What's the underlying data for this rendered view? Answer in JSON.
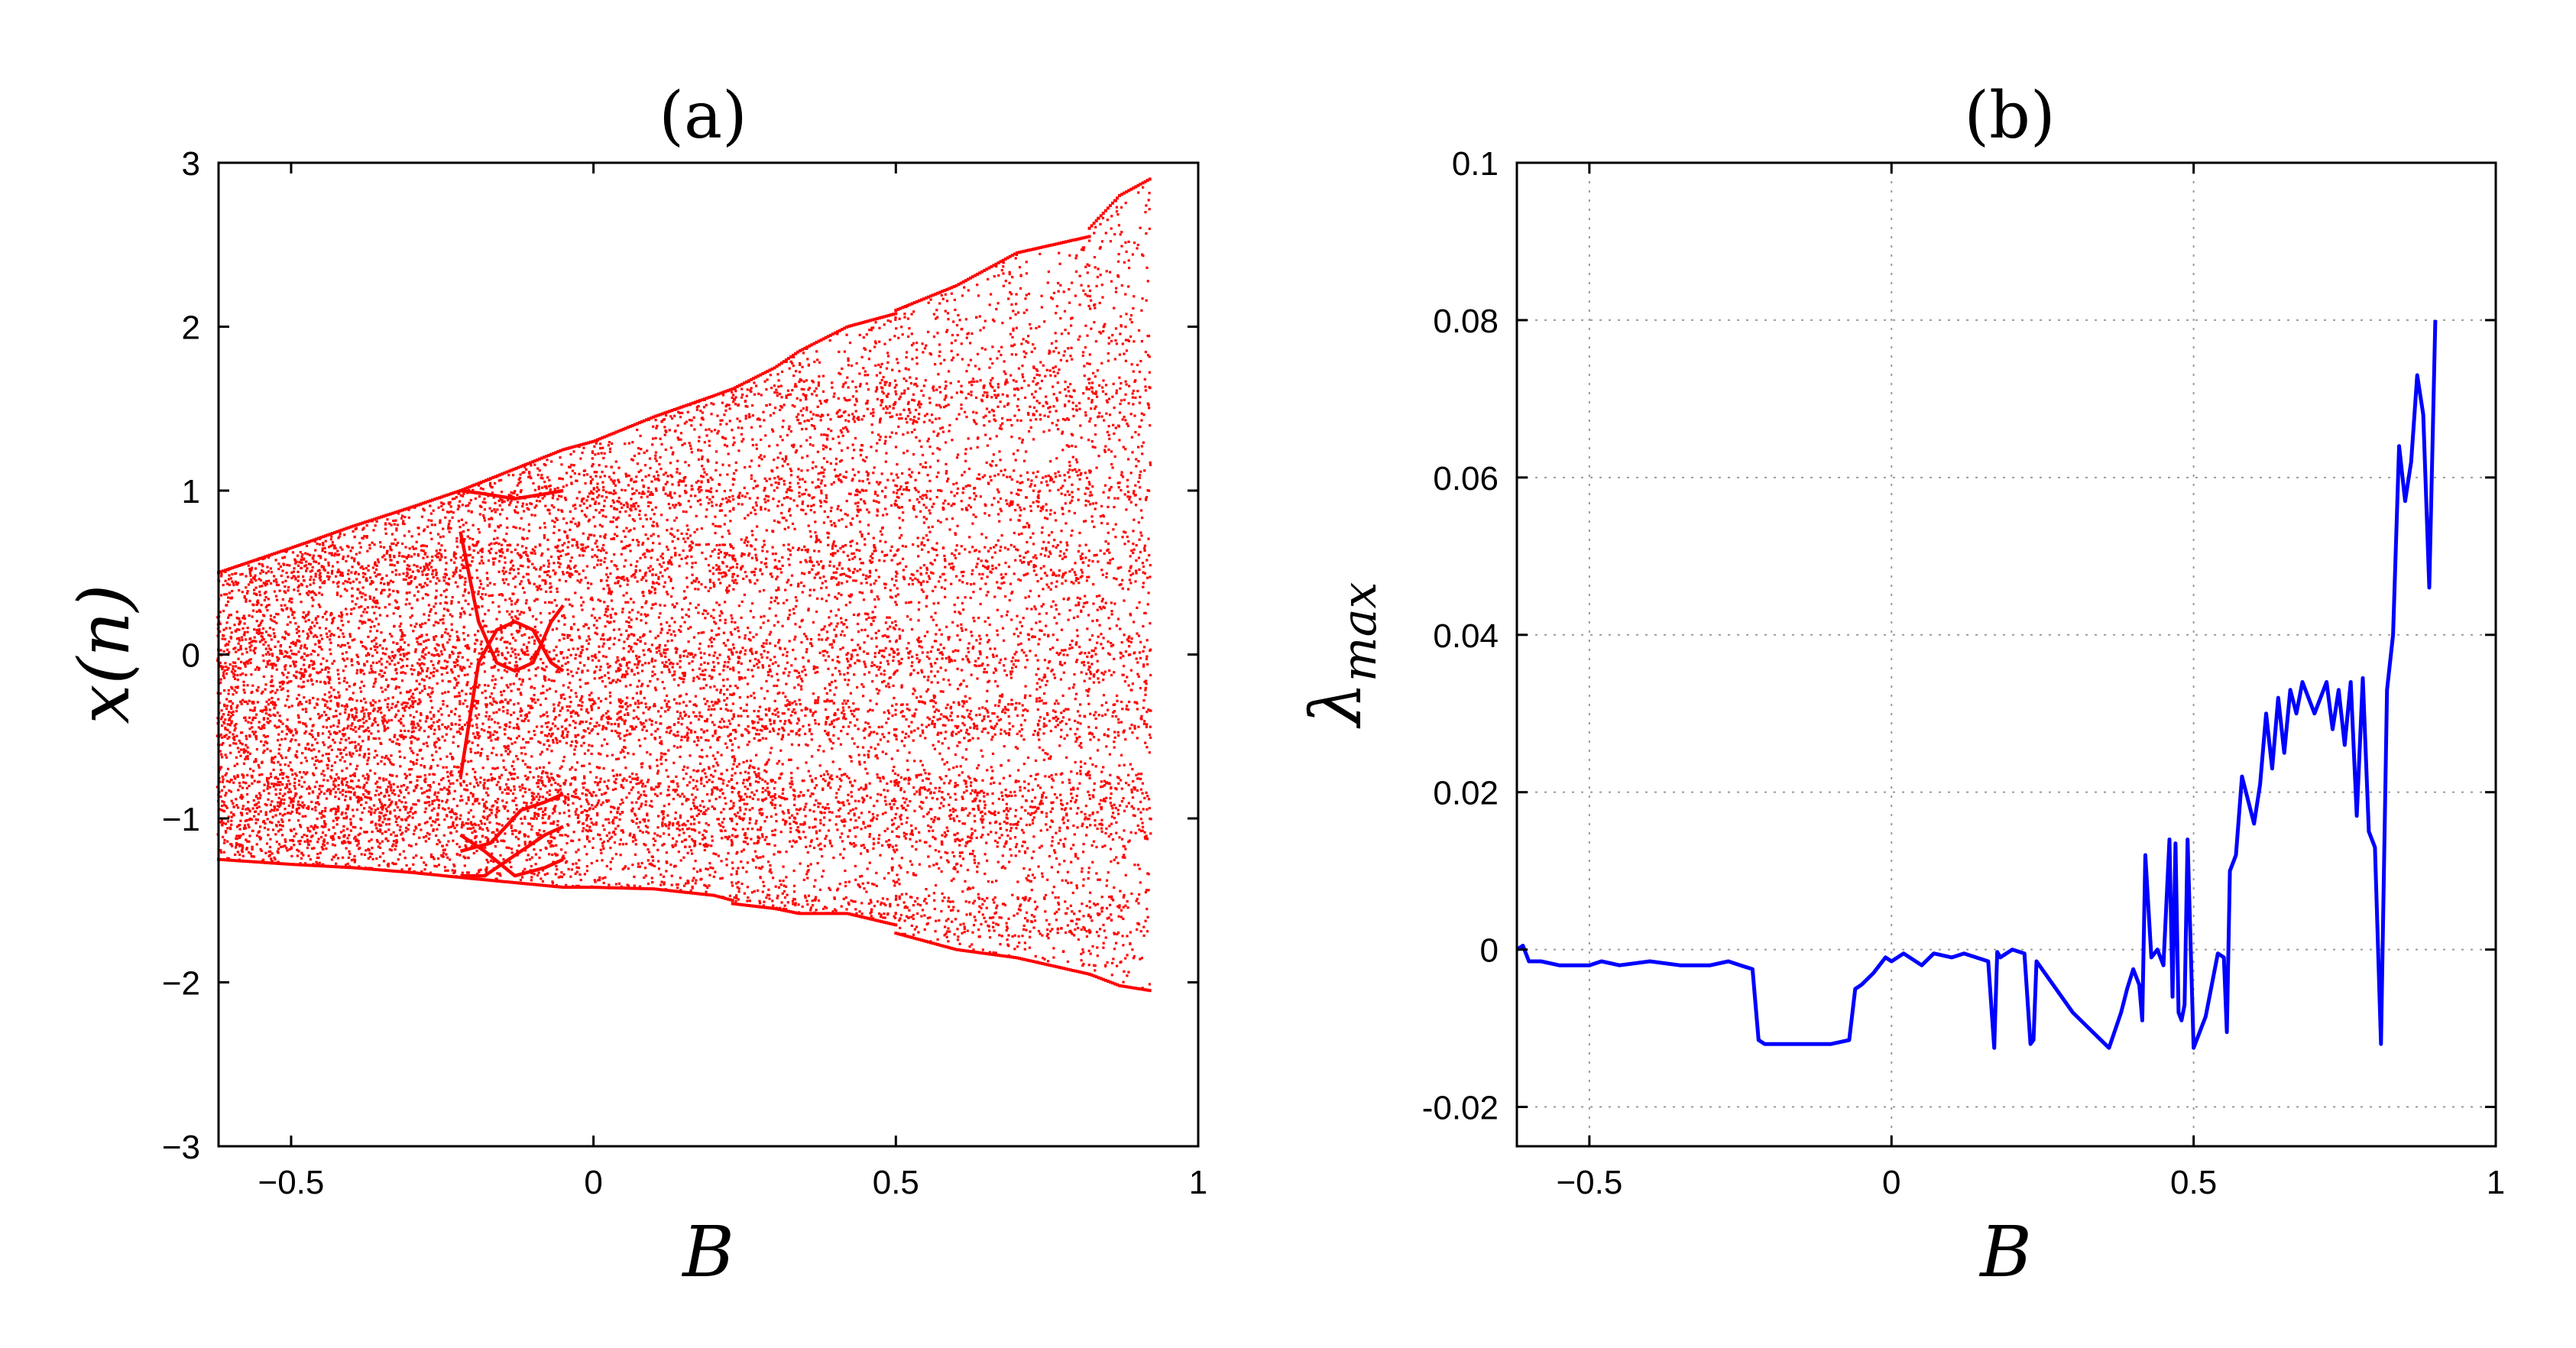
{
  "chart_data": [
    {
      "type": "scatter",
      "panel_label": "(a)",
      "xlabel": "B",
      "ylabel": "x(n)",
      "xlim": [
        -0.62,
        1
      ],
      "ylim": [
        -3,
        3
      ],
      "xticks": [
        -0.5,
        0,
        0.5,
        1
      ],
      "xtick_labels": [
        "−0.5",
        "0",
        "0.5",
        "1"
      ],
      "yticks": [
        -3,
        -2,
        -1,
        0,
        1,
        2,
        3
      ],
      "ytick_labels": [
        "−3",
        "−2",
        "−1",
        "0",
        "1",
        "2",
        "3"
      ],
      "grid": false,
      "color": "#ff0000",
      "series": [
        {
          "kind": "band",
          "comment": "chaotic envelope: [B, lower, upper]",
          "points": [
            [
              -0.62,
              -1.25,
              0.5
            ],
            [
              -0.5,
              -1.28,
              0.65
            ],
            [
              -0.4,
              -1.3,
              0.78
            ],
            [
              -0.3,
              -1.33,
              0.9
            ],
            [
              -0.22,
              -1.36,
              1.0
            ],
            [
              -0.05,
              -1.42,
              1.25
            ],
            [
              0.0,
              -1.42,
              1.3
            ],
            [
              0.1,
              -1.43,
              1.45
            ],
            [
              0.2,
              -1.47,
              1.58
            ],
            [
              0.23,
              -1.5,
              1.62
            ],
            [
              0.23,
              -1.52,
              1.62
            ],
            [
              0.3,
              -1.55,
              1.75
            ],
            [
              0.34,
              -1.58,
              1.85
            ],
            [
              0.42,
              -1.58,
              2.0
            ],
            [
              0.5,
              -1.65,
              2.08
            ],
            [
              0.5,
              -1.7,
              2.1
            ],
            [
              0.6,
              -1.8,
              2.25
            ],
            [
              0.7,
              -1.85,
              2.45
            ],
            [
              0.82,
              -1.95,
              2.55
            ],
            [
              0.82,
              -1.95,
              2.6
            ],
            [
              0.87,
              -2.02,
              2.8
            ],
            [
              0.92,
              -2.05,
              2.9
            ]
          ]
        },
        {
          "kind": "branches",
          "comment": "period windows: [B, x]",
          "lines": [
            [
              [
                -0.22,
                1.0
              ],
              [
                -0.18,
                0.98
              ],
              [
                -0.13,
                0.95
              ],
              [
                -0.08,
                0.98
              ],
              [
                -0.05,
                1.0
              ]
            ],
            [
              [
                -0.22,
                0.75
              ],
              [
                -0.19,
                0.2
              ],
              [
                -0.16,
                -0.05
              ],
              [
                -0.13,
                -0.1
              ],
              [
                -0.1,
                -0.05
              ],
              [
                -0.07,
                0.2
              ],
              [
                -0.05,
                0.3
              ]
            ],
            [
              [
                -0.22,
                -0.75
              ],
              [
                -0.19,
                -0.05
              ],
              [
                -0.16,
                0.15
              ],
              [
                -0.13,
                0.2
              ],
              [
                -0.1,
                0.15
              ],
              [
                -0.07,
                -0.05
              ],
              [
                -0.05,
                -0.1
              ]
            ],
            [
              [
                -0.22,
                -1.1
              ],
              [
                -0.18,
                -1.2
              ],
              [
                -0.13,
                -1.35
              ],
              [
                -0.08,
                -1.3
              ],
              [
                -0.05,
                -1.25
              ]
            ],
            [
              [
                -0.22,
                -1.35
              ],
              [
                -0.18,
                -1.35
              ],
              [
                -0.12,
                -1.2
              ],
              [
                -0.08,
                -1.1
              ],
              [
                -0.05,
                -1.05
              ]
            ],
            [
              [
                -0.22,
                -1.2
              ],
              [
                -0.17,
                -1.15
              ],
              [
                -0.12,
                -0.95
              ],
              [
                -0.08,
                -0.9
              ],
              [
                -0.05,
                -0.85
              ]
            ]
          ]
        }
      ]
    },
    {
      "type": "line",
      "panel_label": "(b)",
      "xlabel": "B",
      "ylabel": "λ_max",
      "xlim": [
        -0.62,
        1
      ],
      "ylim": [
        -0.025,
        0.1
      ],
      "xticks": [
        -0.5,
        0,
        0.5,
        1
      ],
      "xtick_labels": [
        "−0.5",
        "0",
        "0.5",
        "1"
      ],
      "yticks": [
        -0.02,
        0,
        0.02,
        0.04,
        0.06,
        0.08,
        0.1
      ],
      "ytick_labels": [
        "-0.02",
        "0",
        "0.02",
        "0.04",
        "0.06",
        "0.08",
        "0.1"
      ],
      "grid": true,
      "color": "#0000ff",
      "series": [
        {
          "x": [
            -0.62,
            -0.61,
            -0.6,
            -0.58,
            -0.55,
            -0.5,
            -0.48,
            -0.45,
            -0.4,
            -0.35,
            -0.3,
            -0.27,
            -0.25,
            -0.23,
            -0.22,
            -0.21,
            -0.19,
            -0.15,
            -0.1,
            -0.07,
            -0.06,
            -0.05,
            -0.03,
            -0.01,
            0.0,
            0.02,
            0.05,
            0.07,
            0.1,
            0.12,
            0.14,
            0.16,
            0.17,
            0.175,
            0.18,
            0.2,
            0.22,
            0.23,
            0.235,
            0.24,
            0.3,
            0.36,
            0.38,
            0.39,
            0.4,
            0.41,
            0.415,
            0.42,
            0.43,
            0.44,
            0.45,
            0.46,
            0.465,
            0.47,
            0.475,
            0.48,
            0.485,
            0.49,
            0.5,
            0.52,
            0.54,
            0.55,
            0.555,
            0.56,
            0.57,
            0.58,
            0.6,
            0.61,
            0.62,
            0.63,
            0.64,
            0.65,
            0.66,
            0.67,
            0.68,
            0.7,
            0.72,
            0.73,
            0.74,
            0.75,
            0.76,
            0.77,
            0.78,
            0.79,
            0.8,
            0.81,
            0.82,
            0.83,
            0.84,
            0.85,
            0.86,
            0.87,
            0.88,
            0.89,
            0.9
          ],
          "y": [
            0.0,
            0.0005,
            -0.0015,
            -0.0015,
            -0.002,
            -0.002,
            -0.0015,
            -0.002,
            -0.0015,
            -0.002,
            -0.002,
            -0.0015,
            -0.002,
            -0.0025,
            -0.0115,
            -0.012,
            -0.012,
            -0.012,
            -0.012,
            -0.0115,
            -0.005,
            -0.0045,
            -0.003,
            -0.001,
            -0.0015,
            -0.0005,
            -0.002,
            -0.0005,
            -0.001,
            -0.0005,
            -0.001,
            -0.0015,
            -0.0125,
            -0.0003,
            -0.001,
            0.0,
            -0.0005,
            -0.012,
            -0.0115,
            -0.0015,
            -0.008,
            -0.0125,
            -0.008,
            -0.005,
            -0.0025,
            -0.0045,
            -0.009,
            0.012,
            -0.001,
            0.0,
            -0.002,
            0.014,
            -0.006,
            0.0135,
            -0.008,
            -0.009,
            -0.007,
            0.014,
            -0.0125,
            -0.0085,
            -0.0005,
            -0.001,
            -0.0105,
            0.01,
            0.012,
            0.022,
            0.016,
            0.021,
            0.03,
            0.023,
            0.032,
            0.025,
            0.033,
            0.03,
            0.034,
            0.03,
            0.034,
            0.028,
            0.033,
            0.026,
            0.034,
            0.017,
            0.0345,
            0.015,
            0.013,
            -0.012,
            0.033,
            0.04,
            0.064,
            0.057,
            0.062,
            0.073,
            0.068,
            0.046,
            0.08
          ]
        }
      ]
    }
  ]
}
